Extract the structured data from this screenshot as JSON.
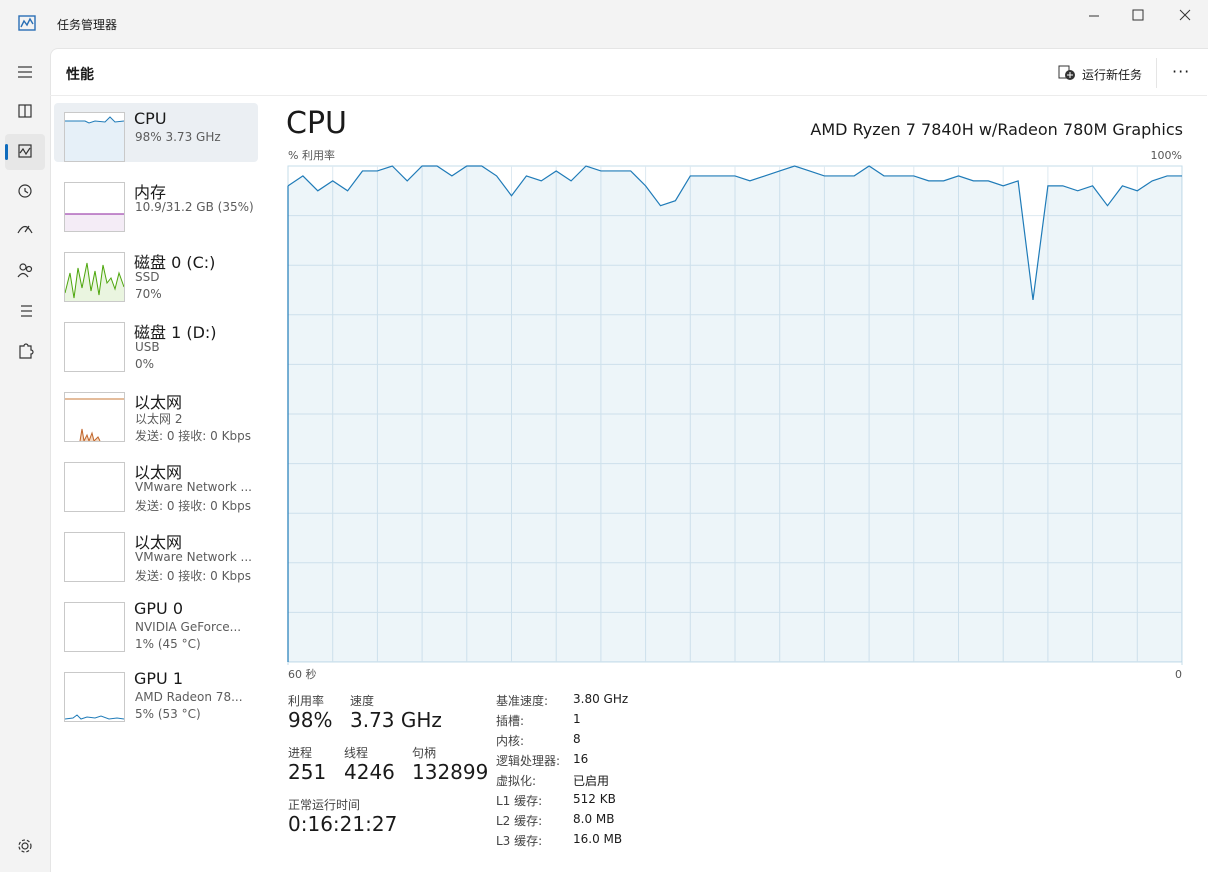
{
  "window": {
    "title": "任务管理器"
  },
  "toolbar": {
    "title": "性能",
    "run_new_task": "运行新任务"
  },
  "devices": [
    {
      "name": "CPU",
      "lines": [
        "98% 3.73 GHz"
      ]
    },
    {
      "name": "内存",
      "lines": [
        "10.9/31.2 GB (35%)"
      ]
    },
    {
      "name": "磁盘 0 (C:)",
      "lines": [
        "SSD",
        "70%"
      ]
    },
    {
      "name": "磁盘 1 (D:)",
      "lines": [
        "USB",
        "0%"
      ]
    },
    {
      "name": "以太网",
      "lines": [
        "以太网 2",
        "发送: 0 接收: 0 Kbps"
      ]
    },
    {
      "name": "以太网",
      "lines": [
        "VMware Network ...",
        "发送: 0 接收: 0 Kbps"
      ]
    },
    {
      "name": "以太网",
      "lines": [
        "VMware Network ...",
        "发送: 0 接收: 0 Kbps"
      ]
    },
    {
      "name": "GPU 0",
      "lines": [
        "NVIDIA GeForce...",
        "1% (45 °C)"
      ]
    },
    {
      "name": "GPU 1",
      "lines": [
        "AMD Radeon 78...",
        "5% (53 °C)"
      ]
    }
  ],
  "detail": {
    "title": "CPU",
    "model": "AMD Ryzen 7 7840H w/Radeon 780M Graphics",
    "stats": [
      [
        {
          "label": "利用率",
          "value": "98%"
        },
        {
          "label": "速度",
          "value": "3.73 GHz"
        }
      ],
      [
        {
          "label": "进程",
          "value": "251"
        },
        {
          "label": "线程",
          "value": "4246"
        },
        {
          "label": "句柄",
          "value": "132899"
        }
      ],
      [
        {
          "label": "正常运行时间",
          "value": "0:16:21:27"
        }
      ]
    ],
    "specs": [
      {
        "label": "基准速度:",
        "value": "3.80 GHz"
      },
      {
        "label": "插槽:",
        "value": "1"
      },
      {
        "label": "内核:",
        "value": "8"
      },
      {
        "label": "逻辑处理器:",
        "value": "16"
      },
      {
        "label": "虚拟化:",
        "value": "已启用"
      },
      {
        "label": "L1 缓存:",
        "value": "512 KB"
      },
      {
        "label": "L2 缓存:",
        "value": "8.0 MB"
      },
      {
        "label": "L3 缓存:",
        "value": "16.0 MB"
      }
    ]
  },
  "chart_data": {
    "type": "line",
    "y_label": "% 利用率",
    "x": [
      60,
      59,
      58,
      57,
      56,
      55,
      54,
      53,
      52,
      51,
      50,
      49,
      48,
      47,
      46,
      45,
      44,
      43,
      42,
      41,
      40,
      39,
      38,
      37,
      36,
      35,
      34,
      33,
      32,
      31,
      30,
      29,
      28,
      27,
      26,
      25,
      24,
      23,
      22,
      21,
      20,
      19,
      18,
      17,
      16,
      15,
      14,
      13,
      12,
      11,
      10,
      9,
      8,
      7,
      6,
      5,
      4,
      3,
      2,
      1,
      0
    ],
    "values": [
      96,
      98,
      95,
      97,
      95,
      99,
      99,
      100,
      97,
      100,
      100,
      98,
      100,
      100,
      98,
      94,
      98,
      97,
      99,
      97,
      100,
      99,
      99,
      99,
      96,
      92,
      93,
      98,
      98,
      98,
      98,
      97,
      98,
      99,
      100,
      99,
      98,
      98,
      98,
      100,
      98,
      98,
      98,
      97,
      97,
      98,
      97,
      97,
      96,
      97,
      73,
      96,
      96,
      95,
      96,
      92,
      96,
      95,
      97,
      98,
      98
    ],
    "color": "#1f7bb8",
    "xlim": [
      60,
      0
    ],
    "xticks": [
      {
        "value": 60,
        "label": "60 秒"
      },
      0
    ],
    "ylim": [
      0,
      100
    ],
    "yticks": [
      {
        "value": 100,
        "label": "100%"
      }
    ]
  }
}
